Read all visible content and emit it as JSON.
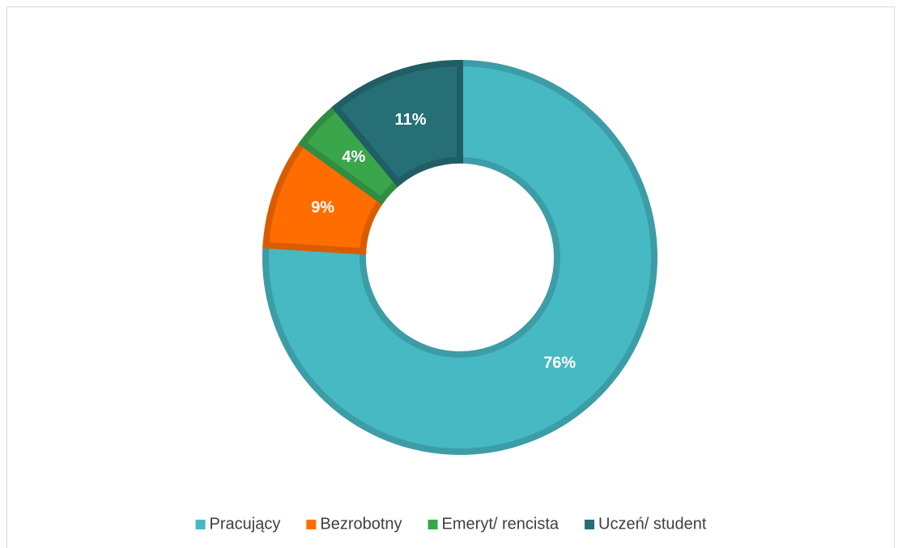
{
  "chart_data": {
    "type": "donut",
    "categories": [
      "Pracujący",
      "Bezrobotny",
      "Emeryt/ rencista",
      "Uczeń/ student"
    ],
    "values": [
      76,
      9,
      4,
      11
    ],
    "value_labels": [
      "76%",
      "9%",
      "4%",
      "11%"
    ],
    "colors": [
      "#46b9c3",
      "#ff6d00",
      "#3aa64c",
      "#266f76"
    ],
    "legend": "bottom"
  }
}
